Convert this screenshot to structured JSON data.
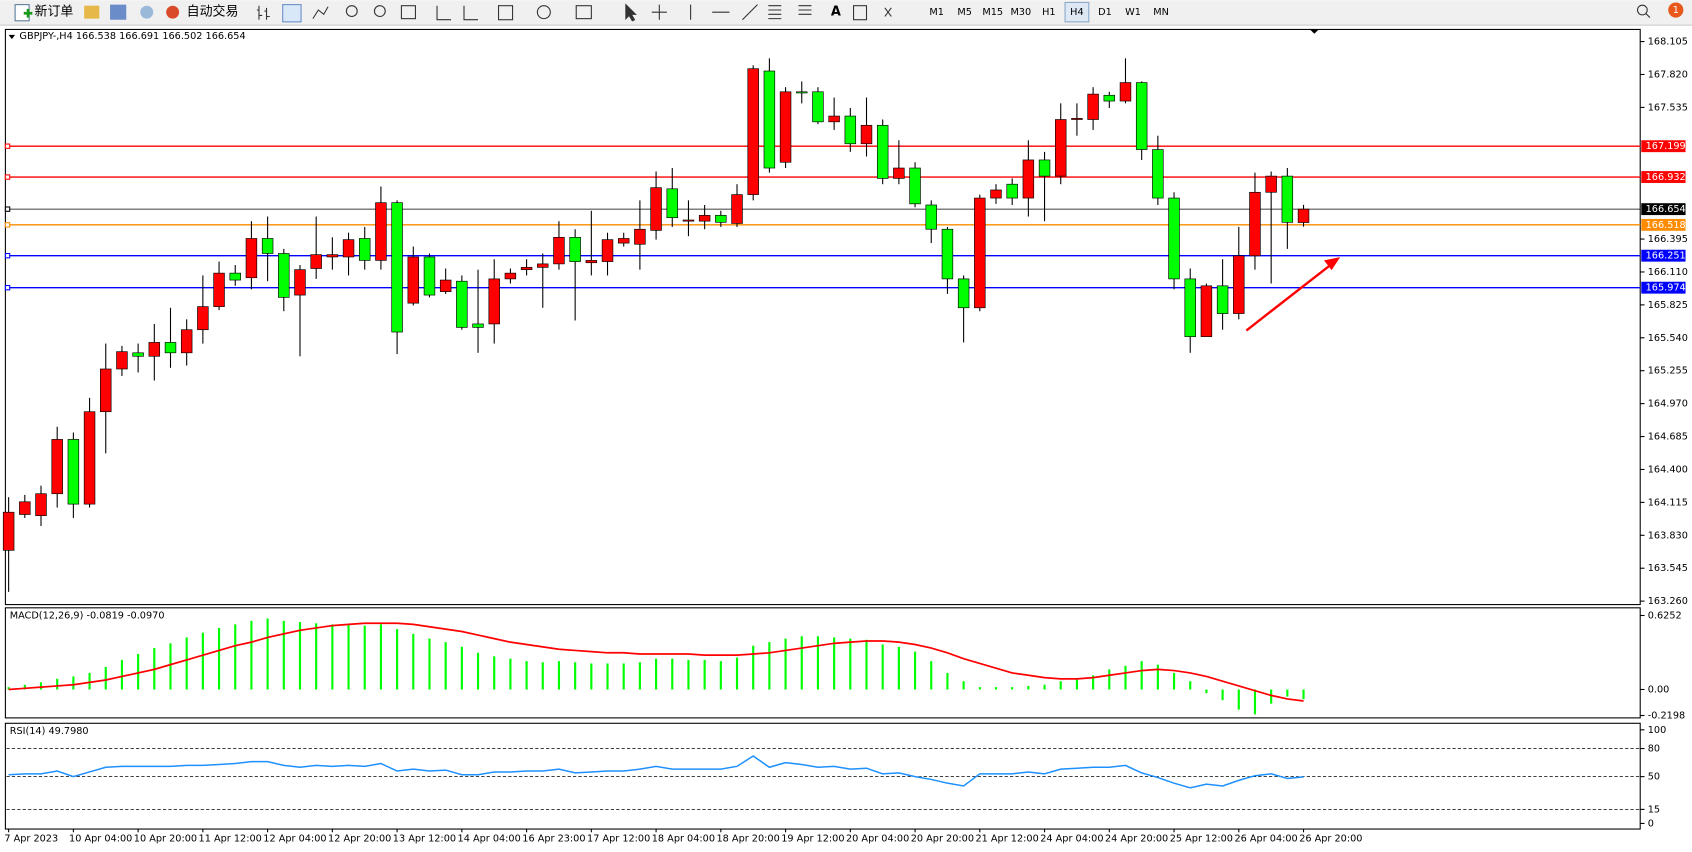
{
  "toolbar": {
    "new_order": "新订单",
    "auto_trading": "自动交易",
    "timeframes": [
      "M1",
      "M5",
      "M15",
      "M30",
      "H1",
      "H4",
      "D1",
      "W1",
      "MN"
    ],
    "active_timeframe": 5,
    "notifications": "1"
  },
  "chart_data": [
    {
      "type": "candlestick",
      "title": "GBPJPY-,H4",
      "categories": [
        "7 Apr 2023",
        null,
        null,
        null,
        "10 Apr 04:00",
        null,
        null,
        null,
        "10 Apr 20:00",
        null,
        null,
        null,
        "11 Apr 12:00",
        null,
        null,
        null,
        "12 Apr 04:00",
        null,
        null,
        null,
        "12 Apr 20:00",
        null,
        null,
        null,
        "13 Apr 12:00",
        null,
        null,
        null,
        "14 Apr 04:00",
        null,
        null,
        null,
        "16 Apr 23:00",
        null,
        null,
        null,
        "17 Apr 12:00",
        null,
        null,
        null,
        "18 Apr 04:00",
        null,
        null,
        null,
        "18 Apr 20:00",
        null,
        null,
        null,
        "19 Apr 12:00",
        null,
        null,
        null,
        "20 Apr 04:00",
        null,
        null,
        null,
        "20 Apr 20:00",
        null,
        null,
        null,
        "21 Apr 12:00",
        null,
        null,
        null,
        "24 Apr 04:00",
        null,
        null,
        null,
        "24 Apr 20:00",
        null,
        null,
        null,
        "25 Apr 12:00",
        null,
        null,
        null,
        "26 Apr 04:00",
        null,
        null,
        null,
        "26 Apr 20:00"
      ],
      "open": [
        163.7,
        164.01,
        164.0,
        164.19,
        164.66,
        164.1,
        164.9,
        165.27,
        165.41,
        165.38,
        165.5,
        165.41,
        165.61,
        165.81,
        166.1,
        166.06,
        166.4,
        166.27,
        165.91,
        166.14,
        166.24,
        166.24,
        166.4,
        166.21,
        166.71,
        165.84,
        166.24,
        165.94,
        166.03,
        165.66,
        165.66,
        166.05,
        166.13,
        166.15,
        166.18,
        166.41,
        166.19,
        166.2,
        166.36,
        166.35,
        166.47,
        166.83,
        166.55,
        166.55,
        166.6,
        166.53,
        166.78,
        167.85,
        167.06,
        167.67,
        167.67,
        167.41,
        167.46,
        167.22,
        167.38,
        166.92,
        167.01,
        166.69,
        166.48,
        166.05,
        165.8,
        166.75,
        166.87,
        166.75,
        167.08,
        166.94,
        167.43,
        167.43,
        167.64,
        167.59,
        167.75,
        167.17,
        166.75,
        166.05,
        165.55,
        165.99,
        165.75,
        166.25,
        166.8,
        166.94,
        166.538
      ],
      "high": [
        164.16,
        164.18,
        164.26,
        164.77,
        164.72,
        165.02,
        165.49,
        165.47,
        165.49,
        165.66,
        165.8,
        165.7,
        166.08,
        166.2,
        166.17,
        166.55,
        166.59,
        166.31,
        166.17,
        166.59,
        166.41,
        166.45,
        166.5,
        166.85,
        166.73,
        166.33,
        166.27,
        166.14,
        166.08,
        166.13,
        166.22,
        166.14,
        166.22,
        166.27,
        166.55,
        166.48,
        166.64,
        166.45,
        166.45,
        166.73,
        166.98,
        167.01,
        166.73,
        166.69,
        166.64,
        166.87,
        167.9,
        167.96,
        167.71,
        167.76,
        167.71,
        167.62,
        167.53,
        167.62,
        167.43,
        167.25,
        167.06,
        166.73,
        166.5,
        166.08,
        166.78,
        166.87,
        166.92,
        167.25,
        167.15,
        167.57,
        167.57,
        167.71,
        167.67,
        167.96,
        167.76,
        167.29,
        166.8,
        166.14,
        166.01,
        166.22,
        166.5,
        166.97,
        166.98,
        167.01,
        166.691
      ],
      "low": [
        163.34,
        163.98,
        163.91,
        164.07,
        163.98,
        164.07,
        164.54,
        165.21,
        165.24,
        165.17,
        165.28,
        165.3,
        165.49,
        165.78,
        165.99,
        165.96,
        166.03,
        165.77,
        165.38,
        166.05,
        166.13,
        166.08,
        166.13,
        166.13,
        165.4,
        165.82,
        165.89,
        165.92,
        165.61,
        165.41,
        165.49,
        166.01,
        166.08,
        165.8,
        166.13,
        165.69,
        166.08,
        166.08,
        166.33,
        166.13,
        166.39,
        166.5,
        166.42,
        166.48,
        166.5,
        166.5,
        166.73,
        166.97,
        167.01,
        167.57,
        167.39,
        167.34,
        167.15,
        167.11,
        166.87,
        166.87,
        166.67,
        166.36,
        165.92,
        165.5,
        165.77,
        166.7,
        166.69,
        166.59,
        166.55,
        166.87,
        167.29,
        167.34,
        167.53,
        167.57,
        167.08,
        166.69,
        165.96,
        165.41,
        165.55,
        165.61,
        165.7,
        166.13,
        166.01,
        166.31,
        166.502
      ],
      "close": [
        164.03,
        164.12,
        164.19,
        164.66,
        164.1,
        164.9,
        165.27,
        165.42,
        165.38,
        165.5,
        165.41,
        165.61,
        165.81,
        166.1,
        166.04,
        166.4,
        166.27,
        165.89,
        166.13,
        166.26,
        166.26,
        166.39,
        166.21,
        166.71,
        165.59,
        166.24,
        165.91,
        166.04,
        165.63,
        165.63,
        166.05,
        166.1,
        166.15,
        166.18,
        166.41,
        166.2,
        166.21,
        166.39,
        166.4,
        166.48,
        166.84,
        166.58,
        166.56,
        166.6,
        166.54,
        166.78,
        167.87,
        167.01,
        167.67,
        167.66,
        167.41,
        167.46,
        167.22,
        167.38,
        166.92,
        167.01,
        166.7,
        166.48,
        166.05,
        165.8,
        166.75,
        166.82,
        166.75,
        167.08,
        166.94,
        167.43,
        167.44,
        167.65,
        167.59,
        167.75,
        167.17,
        166.75,
        166.05,
        165.55,
        165.99,
        165.75,
        166.25,
        166.8,
        166.94,
        166.54,
        166.654
      ],
      "up_color": "#ff0000",
      "down_color": "#00ff00",
      "ylim": [
        163.23,
        168.21
      ],
      "yticks": [
        168.105,
        {
          "value": 167.82,
          "label": "167.820"
        },
        167.535,
        166.395,
        {
          "value": 166.11,
          "label": "166.110"
        },
        165.825,
        {
          "value": 165.54,
          "label": "165.540"
        },
        165.255,
        {
          "value": 164.97,
          "label": "164.970"
        },
        164.685,
        {
          "value": 164.4,
          "label": "164.400"
        },
        164.115,
        {
          "value": 163.83,
          "label": "163.830"
        },
        163.545,
        {
          "value": 163.26,
          "label": "163.260"
        }
      ],
      "levels": [
        {
          "value": 167.199,
          "color": "#ff0000"
        },
        {
          "value": 166.932,
          "color": "#ff0000"
        },
        {
          "value": 166.654,
          "color": "#000000"
        },
        {
          "value": 166.518,
          "color": "#ff8c00"
        },
        {
          "value": 166.251,
          "color": "#0000ff"
        },
        {
          "value": 165.974,
          "color": "#0000ff"
        }
      ]
    },
    {
      "type": "macd",
      "title": "MACD(12,26,9)",
      "readout": [
        {
          "value": -0.0819,
          "label": "-0.0819"
        },
        {
          "value": -0.097,
          "label": "-0.0970"
        }
      ],
      "histogram": {
        "color": "#00ff00",
        "values": [
          0.02,
          0.04,
          0.06,
          0.09,
          0.11,
          0.14,
          0.19,
          0.25,
          0.3,
          0.35,
          0.39,
          0.44,
          0.48,
          0.52,
          0.55,
          0.58,
          0.6,
          0.58,
          0.57,
          0.56,
          0.55,
          0.55,
          0.54,
          0.55,
          0.51,
          0.47,
          0.43,
          0.4,
          0.36,
          0.31,
          0.28,
          0.26,
          0.24,
          0.23,
          0.24,
          0.23,
          0.22,
          0.22,
          0.22,
          0.23,
          0.26,
          0.26,
          0.25,
          0.25,
          0.24,
          0.27,
          0.37,
          0.4,
          0.43,
          0.45,
          0.45,
          0.44,
          0.43,
          0.42,
          0.38,
          0.36,
          0.32,
          0.24,
          0.14,
          0.07,
          0.02,
          0.02,
          0.02,
          0.03,
          0.04,
          0.07,
          0.09,
          0.12,
          0.17,
          0.2,
          0.24,
          0.21,
          0.14,
          0.07,
          -0.03,
          -0.09,
          -0.17,
          -0.21,
          -0.12,
          -0.06,
          -0.0819
        ]
      },
      "signal": {
        "color": "#ff0000",
        "values": [
          0.0,
          0.01,
          0.02,
          0.03,
          0.04,
          0.06,
          0.08,
          0.11,
          0.14,
          0.17,
          0.21,
          0.25,
          0.29,
          0.33,
          0.37,
          0.4,
          0.44,
          0.47,
          0.5,
          0.52,
          0.54,
          0.55,
          0.56,
          0.56,
          0.56,
          0.55,
          0.53,
          0.51,
          0.49,
          0.46,
          0.43,
          0.4,
          0.38,
          0.36,
          0.34,
          0.33,
          0.32,
          0.31,
          0.31,
          0.3,
          0.3,
          0.3,
          0.3,
          0.29,
          0.29,
          0.29,
          0.3,
          0.31,
          0.33,
          0.35,
          0.37,
          0.39,
          0.4,
          0.41,
          0.41,
          0.4,
          0.38,
          0.35,
          0.31,
          0.26,
          0.22,
          0.18,
          0.14,
          0.12,
          0.1,
          0.09,
          0.09,
          0.1,
          0.12,
          0.14,
          0.16,
          0.17,
          0.16,
          0.14,
          0.11,
          0.07,
          0.03,
          -0.01,
          -0.05,
          -0.08,
          -0.097
        ]
      },
      "ylim": [
        -0.24,
        0.69
      ],
      "yticks": [
        0.6252,
        {
          "value": 0,
          "label": "0.00"
        },
        -0.2198
      ]
    },
    {
      "type": "rsi",
      "title": "RSI(14)",
      "readout": [
        {
          "value": 49.798,
          "label": "49.7980"
        }
      ],
      "color": "#1e90ff",
      "values": [
        52,
        53,
        53,
        56,
        50,
        55,
        60,
        61,
        61,
        61,
        61,
        62,
        62,
        63,
        64,
        66,
        66,
        62,
        60,
        62,
        61,
        62,
        61,
        64,
        56,
        58,
        56,
        57,
        52,
        52,
        55,
        55,
        56,
        56,
        58,
        54,
        55,
        56,
        56,
        58,
        61,
        58,
        58,
        58,
        58,
        61,
        72,
        60,
        65,
        63,
        60,
        61,
        58,
        59,
        53,
        54,
        50,
        47,
        43,
        40,
        53,
        53,
        53,
        55,
        53,
        58,
        59,
        60,
        60,
        62,
        54,
        49,
        43,
        38,
        42,
        40,
        46,
        51,
        53,
        48,
        49.798
      ],
      "ylim": [
        -6,
        107
      ],
      "yticks": [
        100,
        80,
        50,
        15,
        0
      ],
      "levels": [
        80,
        50,
        15
      ]
    }
  ]
}
